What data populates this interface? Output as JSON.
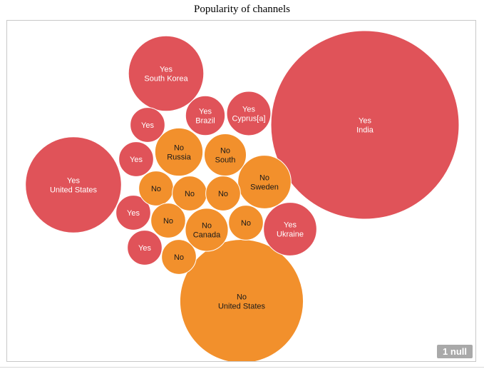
{
  "chart_data": {
    "type": "bubble",
    "title": "Popularity of channels",
    "colors": {
      "Yes": "#e05359",
      "No": "#f2902c"
    },
    "bubbles": [
      {
        "answer": "Yes",
        "label": "India",
        "size": 100
      },
      {
        "answer": "No",
        "label": "United States",
        "size": 43
      },
      {
        "answer": "Yes",
        "label": "United States",
        "size": 26
      },
      {
        "answer": "Yes",
        "label": "South Korea",
        "size": 16
      },
      {
        "answer": "No",
        "label": "Sweden",
        "size": 8
      },
      {
        "answer": "Yes",
        "label": "Ukraine",
        "size": 8
      },
      {
        "answer": "Yes",
        "label": "Cyprus[a]",
        "size": 5.5
      },
      {
        "answer": "No",
        "label": "Russia",
        "size": 6.5
      },
      {
        "answer": "No",
        "label": "Canada",
        "size": 5.2
      },
      {
        "answer": "No",
        "label": "South",
        "size": 5
      },
      {
        "answer": "Yes",
        "label": "Brazil",
        "size": 4.4
      },
      {
        "answer": "Yes",
        "label": "",
        "size": 3.4
      },
      {
        "answer": "Yes",
        "label": "",
        "size": 3.4
      },
      {
        "answer": "Yes",
        "label": "",
        "size": 3.4
      },
      {
        "answer": "Yes",
        "label": "",
        "size": 3.4
      },
      {
        "answer": "No",
        "label": "",
        "size": 3.4
      },
      {
        "answer": "No",
        "label": "",
        "size": 3.4
      },
      {
        "answer": "No",
        "label": "",
        "size": 3.4
      },
      {
        "answer": "No",
        "label": "",
        "size": 3.4
      },
      {
        "answer": "No",
        "label": "",
        "size": 3.4
      },
      {
        "answer": "No",
        "label": "",
        "size": 3.4
      }
    ],
    "null_count_label": "1 null"
  }
}
